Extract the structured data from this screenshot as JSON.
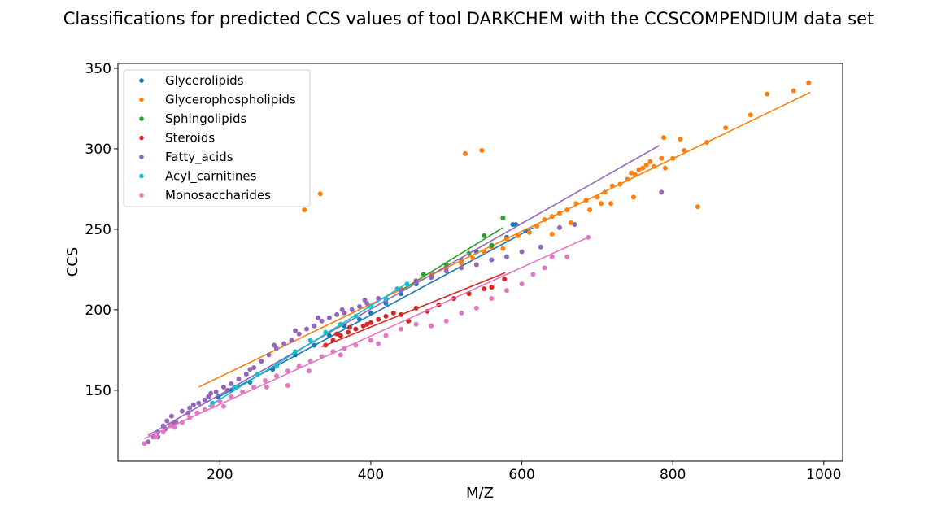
{
  "chart_data": {
    "type": "scatter",
    "title": "Classifications for predicted CCS values of tool DARKCHEM with the CCSCOMPENDIUM data set",
    "xlabel": "M/Z",
    "ylabel": "CCS",
    "xlim": [
      65,
      1025
    ],
    "ylim": [
      106,
      353
    ],
    "xticks": [
      200,
      400,
      600,
      800,
      1000
    ],
    "yticks": [
      150,
      200,
      250,
      300,
      350
    ],
    "grid": false,
    "legend": "top-left",
    "series": [
      {
        "name": "Glycerolipids",
        "color": "#1f77b4",
        "fit": [
          [
            195,
            145
          ],
          [
            615,
            251
          ]
        ],
        "points": [
          [
            198,
            146
          ],
          [
            215,
            150
          ],
          [
            240,
            155
          ],
          [
            270,
            163
          ],
          [
            300,
            172
          ],
          [
            325,
            178
          ],
          [
            345,
            184
          ],
          [
            365,
            190
          ],
          [
            385,
            194
          ],
          [
            400,
            198
          ],
          [
            420,
            204
          ],
          [
            440,
            210
          ],
          [
            460,
            216
          ],
          [
            480,
            221
          ],
          [
            500,
            226
          ],
          [
            520,
            231
          ],
          [
            540,
            236
          ],
          [
            560,
            240
          ],
          [
            580,
            245
          ],
          [
            588,
            253
          ],
          [
            592,
            253
          ],
          [
            605,
            249
          ]
        ]
      },
      {
        "name": "Glycerophospholipids",
        "color": "#ff7f0e",
        "fit": [
          [
            172,
            152
          ],
          [
            982,
            335
          ]
        ],
        "points": [
          [
            312,
            262
          ],
          [
            333,
            272
          ],
          [
            525,
            297
          ],
          [
            547,
            299
          ],
          [
            440,
            213
          ],
          [
            460,
            218
          ],
          [
            480,
            222
          ],
          [
            500,
            227
          ],
          [
            520,
            229
          ],
          [
            535,
            232
          ],
          [
            550,
            236
          ],
          [
            560,
            239
          ],
          [
            575,
            238
          ],
          [
            580,
            244
          ],
          [
            595,
            246
          ],
          [
            610,
            248
          ],
          [
            620,
            252
          ],
          [
            630,
            256
          ],
          [
            640,
            258
          ],
          [
            650,
            260
          ],
          [
            660,
            262
          ],
          [
            665,
            254
          ],
          [
            672,
            266
          ],
          [
            685,
            268
          ],
          [
            690,
            262
          ],
          [
            700,
            270
          ],
          [
            710,
            273
          ],
          [
            720,
            277
          ],
          [
            730,
            278
          ],
          [
            740,
            281
          ],
          [
            745,
            285
          ],
          [
            750,
            284
          ],
          [
            755,
            287
          ],
          [
            760,
            288
          ],
          [
            765,
            290
          ],
          [
            770,
            292
          ],
          [
            775,
            289
          ],
          [
            785,
            294
          ],
          [
            788,
            307
          ],
          [
            790,
            288
          ],
          [
            800,
            294
          ],
          [
            810,
            306
          ],
          [
            815,
            299
          ],
          [
            833,
            264
          ],
          [
            845,
            304
          ],
          [
            870,
            313
          ],
          [
            903,
            321
          ],
          [
            925,
            334
          ],
          [
            960,
            336
          ],
          [
            980,
            341
          ],
          [
            640,
            247
          ],
          [
            705,
            266
          ],
          [
            748,
            270
          ],
          [
            718,
            266
          ]
        ]
      },
      {
        "name": "Sphingolipids",
        "color": "#2ca02c",
        "fit": [
          [
            440,
            212
          ],
          [
            575,
            251
          ]
        ],
        "points": [
          [
            470,
            222
          ],
          [
            500,
            228
          ],
          [
            530,
            235
          ],
          [
            550,
            246
          ],
          [
            560,
            240
          ],
          [
            575,
            257
          ]
        ]
      },
      {
        "name": "Steroids",
        "color": "#d62728",
        "fit": [
          [
            335,
            177
          ],
          [
            578,
            223
          ]
        ],
        "points": [
          [
            340,
            178
          ],
          [
            350,
            181
          ],
          [
            360,
            184
          ],
          [
            370,
            186
          ],
          [
            380,
            188
          ],
          [
            390,
            190
          ],
          [
            400,
            192
          ],
          [
            410,
            194
          ],
          [
            420,
            196
          ],
          [
            430,
            198
          ],
          [
            440,
            197
          ],
          [
            450,
            193
          ],
          [
            460,
            201
          ],
          [
            475,
            199
          ],
          [
            490,
            203
          ],
          [
            510,
            207
          ],
          [
            530,
            210
          ],
          [
            550,
            213
          ],
          [
            560,
            214
          ],
          [
            577,
            219
          ],
          [
            355,
            185
          ],
          [
            372,
            189
          ],
          [
            395,
            191
          ]
        ]
      },
      {
        "name": "Fatty_acids",
        "color": "#9467bd",
        "fit": [
          [
            105,
            122
          ],
          [
            782,
            302
          ]
        ],
        "points": [
          [
            105,
            118
          ],
          [
            112,
            121
          ],
          [
            118,
            124
          ],
          [
            125,
            128
          ],
          [
            130,
            131
          ],
          [
            136,
            134
          ],
          [
            142,
            130
          ],
          [
            150,
            137
          ],
          [
            158,
            136
          ],
          [
            165,
            141
          ],
          [
            172,
            142
          ],
          [
            180,
            144
          ],
          [
            188,
            148
          ],
          [
            195,
            149
          ],
          [
            205,
            152
          ],
          [
            215,
            154
          ],
          [
            225,
            157
          ],
          [
            235,
            160
          ],
          [
            245,
            164
          ],
          [
            255,
            168
          ],
          [
            265,
            172
          ],
          [
            275,
            176
          ],
          [
            285,
            179
          ],
          [
            295,
            181
          ],
          [
            305,
            185
          ],
          [
            315,
            188
          ],
          [
            325,
            190
          ],
          [
            335,
            193
          ],
          [
            345,
            195
          ],
          [
            355,
            197
          ],
          [
            365,
            198
          ],
          [
            375,
            200
          ],
          [
            385,
            202
          ],
          [
            395,
            204
          ],
          [
            410,
            207
          ],
          [
            420,
            206
          ],
          [
            440,
            212
          ],
          [
            460,
            218
          ],
          [
            480,
            220
          ],
          [
            500,
            224
          ],
          [
            520,
            226
          ],
          [
            540,
            228
          ],
          [
            560,
            231
          ],
          [
            580,
            233
          ],
          [
            600,
            236
          ],
          [
            625,
            239
          ],
          [
            650,
            251
          ],
          [
            670,
            253
          ],
          [
            785,
            273
          ],
          [
            118,
            121
          ],
          [
            128,
            126
          ],
          [
            138,
            129
          ],
          [
            160,
            139
          ],
          [
            185,
            146
          ],
          [
            210,
            150
          ],
          [
            240,
            163
          ],
          [
            272,
            178
          ],
          [
            300,
            187
          ],
          [
            330,
            195
          ],
          [
            362,
            200
          ],
          [
            392,
            206
          ]
        ]
      },
      {
        "name": "Acyl_carnitines",
        "color": "#17becf",
        "fit": [
          [
            185,
            140
          ],
          [
            450,
            217
          ]
        ],
        "points": [
          [
            190,
            142
          ],
          [
            220,
            152
          ],
          [
            250,
            160
          ],
          [
            275,
            165
          ],
          [
            300,
            174
          ],
          [
            320,
            181
          ],
          [
            340,
            186
          ],
          [
            360,
            191
          ],
          [
            380,
            196
          ],
          [
            400,
            202
          ],
          [
            420,
            207
          ],
          [
            435,
            213
          ],
          [
            448,
            216
          ]
        ]
      },
      {
        "name": "Monosaccharides",
        "color": "#e377c2",
        "fit": [
          [
            100,
            120
          ],
          [
            688,
            245
          ]
        ],
        "points": [
          [
            100,
            117
          ],
          [
            115,
            121
          ],
          [
            125,
            124
          ],
          [
            140,
            127
          ],
          [
            150,
            130
          ],
          [
            160,
            133
          ],
          [
            170,
            136
          ],
          [
            180,
            138
          ],
          [
            190,
            140
          ],
          [
            200,
            143
          ],
          [
            215,
            146
          ],
          [
            230,
            149
          ],
          [
            245,
            152
          ],
          [
            260,
            156
          ],
          [
            275,
            159
          ],
          [
            290,
            162
          ],
          [
            305,
            165
          ],
          [
            320,
            168
          ],
          [
            335,
            171
          ],
          [
            350,
            174
          ],
          [
            365,
            176
          ],
          [
            380,
            178
          ],
          [
            400,
            181
          ],
          [
            420,
            184
          ],
          [
            440,
            188
          ],
          [
            460,
            191
          ],
          [
            480,
            190
          ],
          [
            500,
            193
          ],
          [
            520,
            198
          ],
          [
            540,
            201
          ],
          [
            560,
            207
          ],
          [
            580,
            212
          ],
          [
            600,
            216
          ],
          [
            615,
            222
          ],
          [
            630,
            226
          ],
          [
            640,
            233
          ],
          [
            660,
            233
          ],
          [
            688,
            245
          ],
          [
            135,
            128
          ],
          [
            205,
            140
          ],
          [
            262,
            152
          ],
          [
            290,
            153
          ],
          [
            318,
            162
          ],
          [
            360,
            172
          ],
          [
            410,
            179
          ]
        ]
      }
    ]
  }
}
